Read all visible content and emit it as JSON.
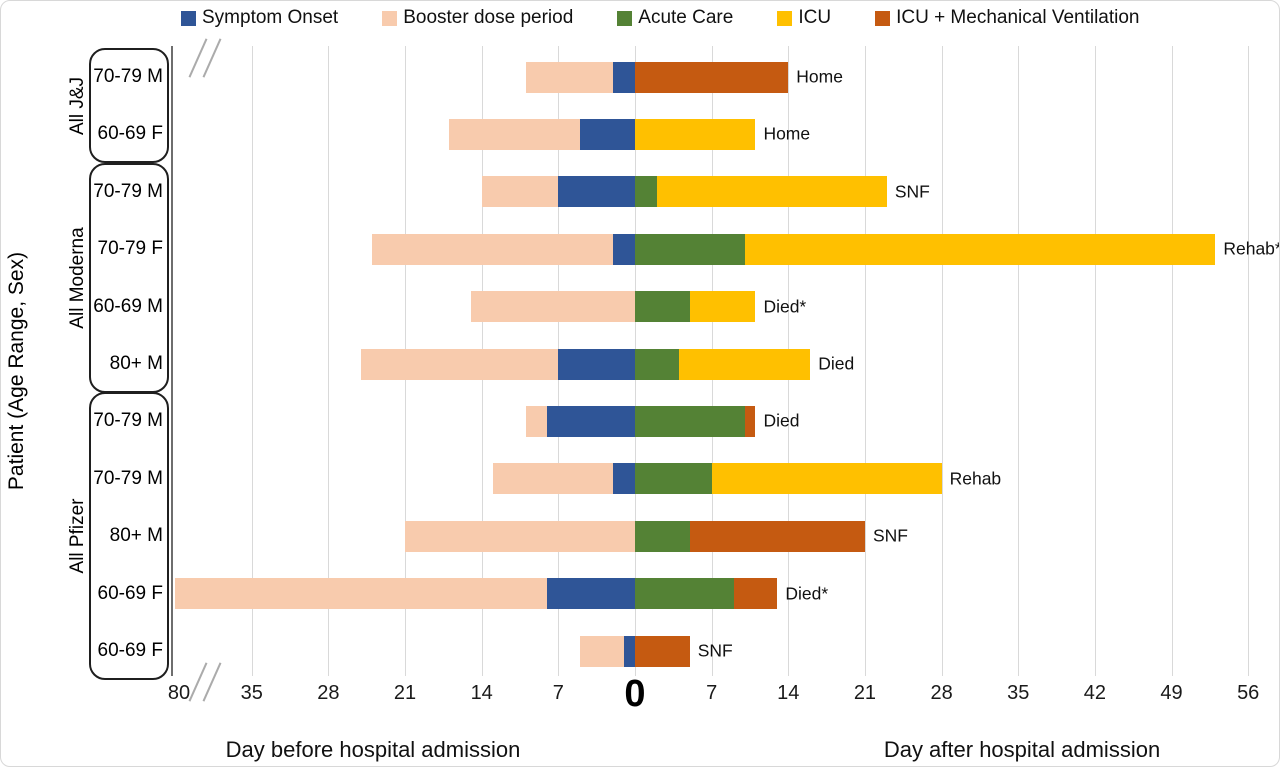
{
  "figure": {
    "y_axis_title": "Patient (Age Range, Sex)",
    "x_axis_title_before": "Day before hospital admission",
    "x_axis_title_after": "Day after hospital admission"
  },
  "chart_data": {
    "type": "bar",
    "subtype": "horizontal-stacked-timeline",
    "title": "",
    "xlabel_left": "Day before hospital admission",
    "xlabel_right": "Day after hospital admission",
    "ylabel": "Patient (Age Range, Sex)",
    "x_unit": "days relative to hospital admission (day 0)",
    "axis_break": {
      "between_ticks": [
        "80",
        "35"
      ]
    },
    "colors": {
      "symptom": "#2F5597",
      "booster": "#F8CBAD",
      "acute": "#548235",
      "icu": "#FFC000",
      "icu_mv": "#C55A11"
    },
    "legend": [
      {
        "key": "symptom",
        "label": "Symptom Onset"
      },
      {
        "key": "booster",
        "label": "Booster dose period"
      },
      {
        "key": "acute",
        "label": "Acute Care"
      },
      {
        "key": "icu",
        "label": "ICU"
      },
      {
        "key": "icu_mv",
        "label": "ICU + Mechanical Ventilation"
      }
    ],
    "x_ticks": [
      {
        "day": -80,
        "label": "80"
      },
      {
        "day": -35,
        "label": "35"
      },
      {
        "day": -28,
        "label": "28"
      },
      {
        "day": -21,
        "label": "21"
      },
      {
        "day": -14,
        "label": "14"
      },
      {
        "day": -7,
        "label": "7"
      },
      {
        "day": 0,
        "label": "0",
        "big": true
      },
      {
        "day": 7,
        "label": "7"
      },
      {
        "day": 14,
        "label": "14"
      },
      {
        "day": 21,
        "label": "21"
      },
      {
        "day": 28,
        "label": "28"
      },
      {
        "day": 35,
        "label": "35"
      },
      {
        "day": 42,
        "label": "42"
      },
      {
        "day": 49,
        "label": "49"
      },
      {
        "day": 56,
        "label": "56"
      }
    ],
    "gridline_days": [
      -35,
      -28,
      -21,
      -14,
      -7,
      0,
      7,
      14,
      21,
      28,
      35,
      42,
      49,
      56
    ],
    "groups": [
      {
        "label": "All J&J",
        "patients": [
          {
            "age_sex": "70-79 M",
            "outcome": "Home",
            "segments": [
              {
                "type": "booster",
                "start": -10,
                "end": -2
              },
              {
                "type": "symptom",
                "start": -2,
                "end": 0
              },
              {
                "type": "icu_mv",
                "start": 0,
                "end": 14
              }
            ]
          },
          {
            "age_sex": "60-69 F",
            "outcome": "Home",
            "segments": [
              {
                "type": "booster",
                "start": -17,
                "end": -5
              },
              {
                "type": "symptom",
                "start": -5,
                "end": 0
              },
              {
                "type": "icu",
                "start": 0,
                "end": 11
              }
            ]
          }
        ]
      },
      {
        "label": "All Moderna",
        "patients": [
          {
            "age_sex": "70-79 M",
            "outcome": "SNF",
            "segments": [
              {
                "type": "booster",
                "start": -14,
                "end": -7
              },
              {
                "type": "symptom",
                "start": -7,
                "end": 0
              },
              {
                "type": "acute",
                "start": 0,
                "end": 2
              },
              {
                "type": "icu",
                "start": 2,
                "end": 23
              }
            ]
          },
          {
            "age_sex": "70-79 F",
            "outcome": "Rehab*",
            "segments": [
              {
                "type": "booster",
                "start": -24,
                "end": -2
              },
              {
                "type": "symptom",
                "start": -2,
                "end": 0
              },
              {
                "type": "acute",
                "start": 0,
                "end": 10
              },
              {
                "type": "icu",
                "start": 10,
                "end": 53
              }
            ]
          },
          {
            "age_sex": "60-69 M",
            "outcome": "Died*",
            "segments": [
              {
                "type": "booster",
                "start": -15,
                "end": 0
              },
              {
                "type": "acute",
                "start": 0,
                "end": 5
              },
              {
                "type": "icu",
                "start": 5,
                "end": 11
              }
            ]
          },
          {
            "age_sex": "80+ M",
            "outcome": "Died",
            "segments": [
              {
                "type": "booster",
                "start": -25,
                "end": -7
              },
              {
                "type": "symptom",
                "start": -7,
                "end": 0
              },
              {
                "type": "acute",
                "start": 0,
                "end": 4
              },
              {
                "type": "icu",
                "start": 4,
                "end": 16
              }
            ]
          }
        ]
      },
      {
        "label": "All Pfizer",
        "patients": [
          {
            "age_sex": "70-79 M",
            "outcome": "Died",
            "segments": [
              {
                "type": "booster",
                "start": -10,
                "end": -8
              },
              {
                "type": "symptom",
                "start": -8,
                "end": 0
              },
              {
                "type": "acute",
                "start": 0,
                "end": 10
              },
              {
                "type": "icu_mv",
                "start": 10,
                "end": 11
              }
            ]
          },
          {
            "age_sex": "70-79 M",
            "outcome": "Rehab",
            "segments": [
              {
                "type": "booster",
                "start": -13,
                "end": -2
              },
              {
                "type": "symptom",
                "start": -2,
                "end": 0
              },
              {
                "type": "acute",
                "start": 0,
                "end": 7
              },
              {
                "type": "icu",
                "start": 7,
                "end": 28
              }
            ]
          },
          {
            "age_sex": "80+ M",
            "outcome": "SNF",
            "segments": [
              {
                "type": "booster",
                "start": -21,
                "end": 0
              },
              {
                "type": "acute",
                "start": 0,
                "end": 5
              },
              {
                "type": "icu_mv",
                "start": 5,
                "end": 21
              }
            ]
          },
          {
            "age_sex": "60-69 F",
            "outcome": "Died*",
            "segments": [
              {
                "type": "booster",
                "start": -80,
                "end": -8
              },
              {
                "type": "symptom",
                "start": -8,
                "end": 0
              },
              {
                "type": "acute",
                "start": 0,
                "end": 9
              },
              {
                "type": "icu_mv",
                "start": 9,
                "end": 13
              }
            ]
          },
          {
            "age_sex": "60-69 F",
            "outcome": "SNF",
            "segments": [
              {
                "type": "booster",
                "start": -5,
                "end": -1
              },
              {
                "type": "symptom",
                "start": -1,
                "end": 0
              },
              {
                "type": "icu_mv",
                "start": 0,
                "end": 5
              }
            ]
          }
        ]
      }
    ]
  }
}
